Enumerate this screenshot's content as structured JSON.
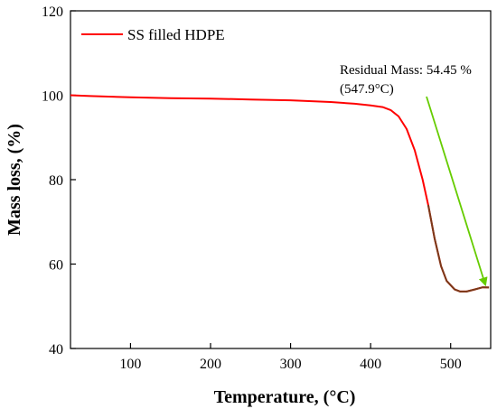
{
  "chart_data": {
    "type": "line",
    "title": "",
    "xlabel": "Temperature, (°C)",
    "ylabel": "Mass loss, (%)",
    "xlim": [
      25,
      550
    ],
    "ylim": [
      40,
      120
    ],
    "xticks": [
      100,
      200,
      300,
      400,
      500
    ],
    "yticks": [
      40,
      60,
      80,
      100,
      120
    ],
    "grid": false,
    "legend": {
      "placement": "top-left"
    },
    "series": [
      {
        "name": "SS filled HDPE",
        "color": "#ff0000",
        "points": [
          [
            25,
            100.0
          ],
          [
            50,
            99.8
          ],
          [
            100,
            99.5
          ],
          [
            150,
            99.3
          ],
          [
            200,
            99.2
          ],
          [
            250,
            99.0
          ],
          [
            300,
            98.8
          ],
          [
            350,
            98.4
          ],
          [
            380,
            98.0
          ],
          [
            400,
            97.6
          ],
          [
            415,
            97.2
          ],
          [
            425,
            96.5
          ],
          [
            435,
            95.0
          ],
          [
            445,
            92.0
          ],
          [
            455,
            87.0
          ],
          [
            465,
            80.0
          ],
          [
            472,
            74.0
          ],
          [
            480,
            66.0
          ],
          [
            488,
            59.5
          ],
          [
            495,
            56.0
          ],
          [
            505,
            54.0
          ],
          [
            512,
            53.5
          ],
          [
            520,
            53.5
          ],
          [
            530,
            54.0
          ],
          [
            540,
            54.5
          ],
          [
            547.9,
            54.45
          ]
        ]
      }
    ],
    "highlight_segment": {
      "color": "#7a3a1a",
      "x_from": 472,
      "x_to": 547.9
    },
    "annotations": [
      {
        "line1": "Residual Mass: 54.45 %",
        "line2": "(547.9°C)",
        "arrow_color": "#66cc00",
        "target": [
          547.9,
          54.45
        ]
      }
    ]
  }
}
